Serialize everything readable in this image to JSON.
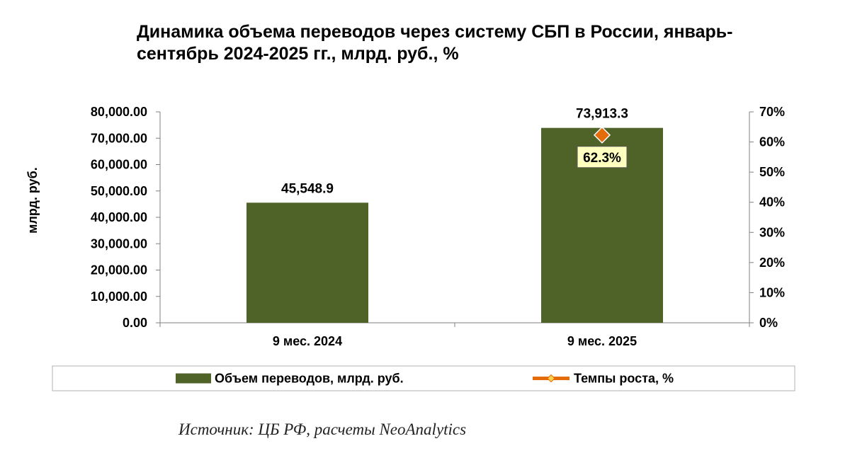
{
  "title_line1": "Динамика объема переводов через систему СБП в России,  январь-",
  "title_line2": "сентябрь 2024-2025 гг., млрд. руб., %",
  "source": "Источник: ЦБ РФ, расчеты NeoAnalytics",
  "chart_data": {
    "type": "bar",
    "categories": [
      "9 мес. 2024",
      "9 мес. 2025"
    ],
    "series": [
      {
        "name": "Объем переводов, млрд. руб.",
        "type": "bar",
        "axis": "left",
        "values": [
          45548.9,
          73913.3
        ],
        "labels": [
          "45,548.9",
          "73,913.3"
        ],
        "color": "#4f6228"
      },
      {
        "name": "Темпы роста, %",
        "type": "line",
        "axis": "right",
        "values": [
          null,
          62.3
        ],
        "labels": [
          "",
          "62.3%"
        ],
        "color": "#e46c0a"
      }
    ],
    "ylabel": "млрд. руб.",
    "ylim": [
      0,
      80000
    ],
    "yticks": [
      "0.00",
      "10,000.00",
      "20,000.00",
      "30,000.00",
      "40,000.00",
      "50,000.00",
      "60,000.00",
      "70,000.00",
      "80,000.00"
    ],
    "y2lim": [
      0,
      70
    ],
    "y2ticks": [
      "0%",
      "10%",
      "20%",
      "30%",
      "40%",
      "50%",
      "60%",
      "70%"
    ],
    "legend_position": "bottom",
    "grid": false
  }
}
